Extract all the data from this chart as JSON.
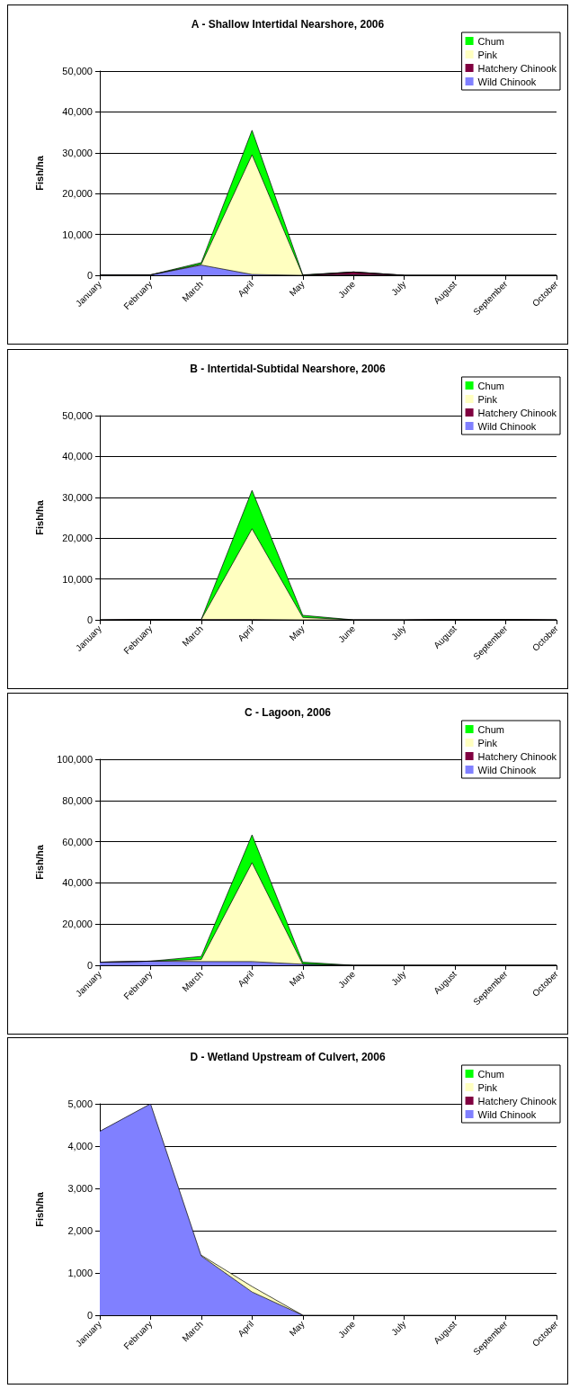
{
  "chart_data": [
    {
      "type": "area",
      "title": "A - Shallow Intertidal Nearshore, 2006",
      "ylabel": "Fish/ha",
      "categories": [
        "January",
        "February",
        "March",
        "April",
        "May",
        "June",
        "July",
        "August",
        "September",
        "October"
      ],
      "stacked": true,
      "grid": "y",
      "legend": "top right",
      "ylim": [
        0,
        50000
      ],
      "yticks": [
        {
          "value": 0,
          "label": "0"
        },
        {
          "value": 10000,
          "label": "10,000"
        },
        {
          "value": 20000,
          "label": "20,000"
        },
        {
          "value": 30000,
          "label": "30,000"
        },
        {
          "value": 40000,
          "label": "40,000"
        },
        {
          "value": 50000,
          "label": "50,000"
        }
      ],
      "series": [
        {
          "name": "Wild Chinook",
          "color": "#8080ff",
          "values": [
            100,
            100,
            2500,
            200,
            0,
            100,
            0,
            0,
            0,
            0
          ]
        },
        {
          "name": "Hatchery Chinook",
          "color": "#800040",
          "values": [
            null,
            null,
            null,
            null,
            0,
            700,
            0,
            null,
            null,
            null
          ]
        },
        {
          "name": "Pink",
          "color": "#ffffc0",
          "values": [
            0,
            0,
            200,
            29300,
            0,
            0,
            0,
            0,
            0,
            0
          ]
        },
        {
          "name": "Chum",
          "color": "#00ff00",
          "values": [
            0,
            0,
            400,
            6000,
            100,
            0,
            0,
            0,
            0,
            0
          ]
        }
      ]
    },
    {
      "type": "area",
      "title": "B - Intertidal-Subtidal Nearshore, 2006",
      "ylabel": "Fish/ha",
      "categories": [
        "January",
        "February",
        "March",
        "April",
        "May",
        "June",
        "July",
        "August",
        "September",
        "October"
      ],
      "stacked": true,
      "grid": "y",
      "legend": "top right",
      "ylim": [
        0,
        50000
      ],
      "yticks": [
        {
          "value": 0,
          "label": "0"
        },
        {
          "value": 10000,
          "label": "10,000"
        },
        {
          "value": 20000,
          "label": "20,000"
        },
        {
          "value": 30000,
          "label": "30,000"
        },
        {
          "value": 40000,
          "label": "40,000"
        },
        {
          "value": 50000,
          "label": "50,000"
        }
      ],
      "series": [
        {
          "name": "Wild Chinook",
          "color": "#8080ff",
          "values": [
            null,
            null,
            null,
            null,
            null,
            null,
            null,
            null,
            null,
            null
          ]
        },
        {
          "name": "Hatchery Chinook",
          "color": "#800040",
          "values": [
            0,
            100,
            100,
            100,
            0,
            0,
            0,
            100,
            100,
            0
          ]
        },
        {
          "name": "Pink",
          "color": "#ffffc0",
          "values": [
            0,
            0,
            0,
            22200,
            600,
            0,
            0,
            0,
            0,
            0
          ]
        },
        {
          "name": "Chum",
          "color": "#00ff00",
          "values": [
            0,
            0,
            0,
            9400,
            500,
            0,
            0,
            0,
            0,
            0
          ]
        }
      ]
    },
    {
      "type": "area",
      "title": "C - Lagoon, 2006",
      "ylabel": "Fish/ha",
      "categories": [
        "January",
        "February",
        "March",
        "April",
        "May",
        "June",
        "July",
        "August",
        "September",
        "October"
      ],
      "stacked": true,
      "grid": "y",
      "legend": "top right",
      "ylim": [
        0,
        100000
      ],
      "yticks": [
        {
          "value": 0,
          "label": "0"
        },
        {
          "value": 20000,
          "label": "20,000"
        },
        {
          "value": 40000,
          "label": "40,000"
        },
        {
          "value": 60000,
          "label": "60,000"
        },
        {
          "value": 80000,
          "label": "80,000"
        },
        {
          "value": 100000,
          "label": "100,000"
        }
      ],
      "series": [
        {
          "name": "Wild Chinook",
          "color": "#8080ff",
          "values": [
            1500,
            2000,
            1800,
            1800,
            500,
            0,
            0,
            0,
            0,
            0
          ]
        },
        {
          "name": "Hatchery Chinook",
          "color": "#800040",
          "values": [
            null,
            null,
            null,
            null,
            null,
            null,
            null,
            null,
            null,
            null
          ]
        },
        {
          "name": "Pink",
          "color": "#ffffc0",
          "values": [
            0,
            0,
            1000,
            48000,
            0,
            0,
            0,
            0,
            0,
            0
          ]
        },
        {
          "name": "Chum",
          "color": "#00ff00",
          "values": [
            0,
            0,
            1500,
            13500,
            1000,
            0,
            0,
            0,
            0,
            0
          ]
        }
      ]
    },
    {
      "type": "area",
      "title": "D - Wetland Upstream of Culvert, 2006",
      "ylabel": "Fish/ha",
      "categories": [
        "January",
        "February",
        "March",
        "April",
        "May",
        "June",
        "July",
        "August",
        "September",
        "October"
      ],
      "stacked": true,
      "grid": "y",
      "legend": "top right",
      "ylim": [
        0,
        5000
      ],
      "yticks": [
        {
          "value": 0,
          "label": "0"
        },
        {
          "value": 1000,
          "label": "1,000"
        },
        {
          "value": 2000,
          "label": "2,000"
        },
        {
          "value": 3000,
          "label": "3,000"
        },
        {
          "value": 4000,
          "label": "4,000"
        },
        {
          "value": 5000,
          "label": "5,000"
        }
      ],
      "series": [
        {
          "name": "Wild Chinook",
          "color": "#8080ff",
          "values": [
            4350,
            5000,
            1400,
            550,
            0,
            0,
            0,
            0,
            0,
            0
          ]
        },
        {
          "name": "Hatchery Chinook",
          "color": "#800040",
          "values": [
            null,
            null,
            null,
            null,
            null,
            null,
            null,
            null,
            null,
            null
          ]
        },
        {
          "name": "Pink",
          "color": "#ffffc0",
          "values": [
            null,
            null,
            20,
            130,
            0,
            null,
            null,
            null,
            null,
            null
          ]
        },
        {
          "name": "Chum",
          "color": "#00ff00",
          "values": [
            null,
            null,
            null,
            null,
            null,
            null,
            null,
            null,
            null,
            null
          ]
        }
      ]
    }
  ]
}
